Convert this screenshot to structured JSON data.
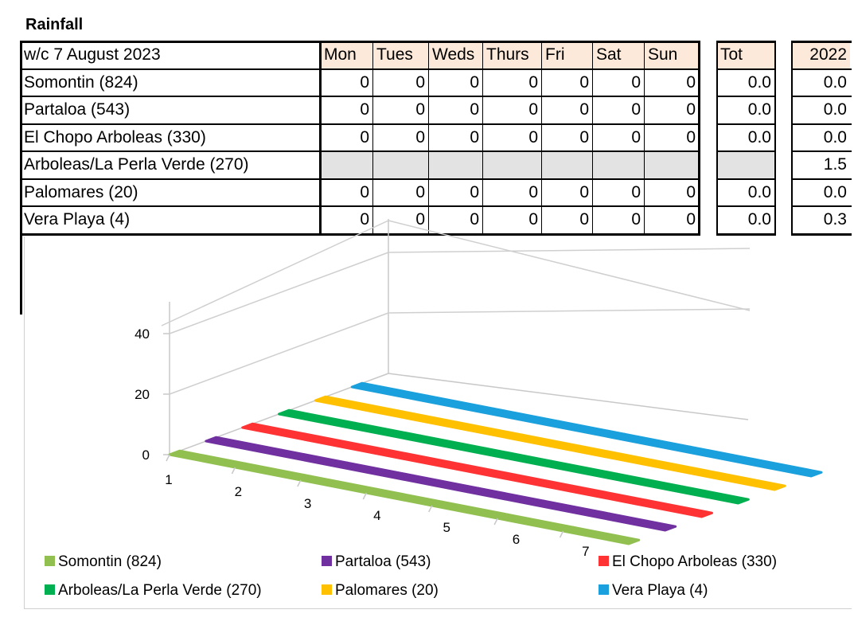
{
  "title": "Rainfall",
  "table": {
    "week_label": "w/c 7 August 2023",
    "days": [
      "Mon",
      "Tues",
      "Weds",
      "Thurs",
      "Fri",
      "Sat",
      "Sun"
    ],
    "total_header": "Tot",
    "prev_year_header": "2022",
    "rows": [
      {
        "name": "Somontin (824)",
        "days": [
          "0",
          "0",
          "0",
          "0",
          "0",
          "0",
          "0"
        ],
        "total": "0.0",
        "prev": "0.0"
      },
      {
        "name": "Partaloa (543)",
        "days": [
          "0",
          "0",
          "0",
          "0",
          "0",
          "0",
          "0"
        ],
        "total": "0.0",
        "prev": "0.0"
      },
      {
        "name": "El Chopo Arboleas (330)",
        "days": [
          "0",
          "0",
          "0",
          "0",
          "0",
          "0",
          "0"
        ],
        "total": "0.0",
        "prev": "0.0"
      },
      {
        "name": "Arboleas/La Perla Verde (270)",
        "days": [
          "",
          "",
          "",
          "",
          "",
          "",
          ""
        ],
        "total": "",
        "prev": "1.5"
      },
      {
        "name": "Palomares (20)",
        "days": [
          "0",
          "0",
          "0",
          "0",
          "0",
          "0",
          "0"
        ],
        "total": "0.0",
        "prev": "0.0"
      },
      {
        "name": "Vera Playa (4)",
        "days": [
          "0",
          "0",
          "0",
          "0",
          "0",
          "0",
          "0"
        ],
        "total": "0.0",
        "prev": "0.3"
      }
    ]
  },
  "chart_data": {
    "type": "bar",
    "categories": [
      "1",
      "2",
      "3",
      "4",
      "5",
      "6",
      "7"
    ],
    "ylim": [
      0,
      40
    ],
    "yticks": [
      0,
      20,
      40
    ],
    "grid": true,
    "legend_position": "bottom",
    "series": [
      {
        "name": "Somontin (824)",
        "color": "#92c050",
        "values": [
          0,
          0,
          0,
          0,
          0,
          0,
          0
        ]
      },
      {
        "name": "Partaloa (543)",
        "color": "#7030a0",
        "values": [
          0,
          0,
          0,
          0,
          0,
          0,
          0
        ]
      },
      {
        "name": "El Chopo Arboleas (330)",
        "color": "#ff3333",
        "values": [
          0,
          0,
          0,
          0,
          0,
          0,
          0
        ]
      },
      {
        "name": "Arboleas/La Perla Verde (270)",
        "color": "#00b050",
        "values": [
          0,
          0,
          0,
          0,
          0,
          0,
          0
        ]
      },
      {
        "name": "Palomares (20)",
        "color": "#ffc000",
        "values": [
          0,
          0,
          0,
          0,
          0,
          0,
          0
        ]
      },
      {
        "name": "Vera Playa (4)",
        "color": "#1aa0dc",
        "values": [
          0,
          0,
          0,
          0,
          0,
          0,
          0
        ]
      }
    ]
  }
}
